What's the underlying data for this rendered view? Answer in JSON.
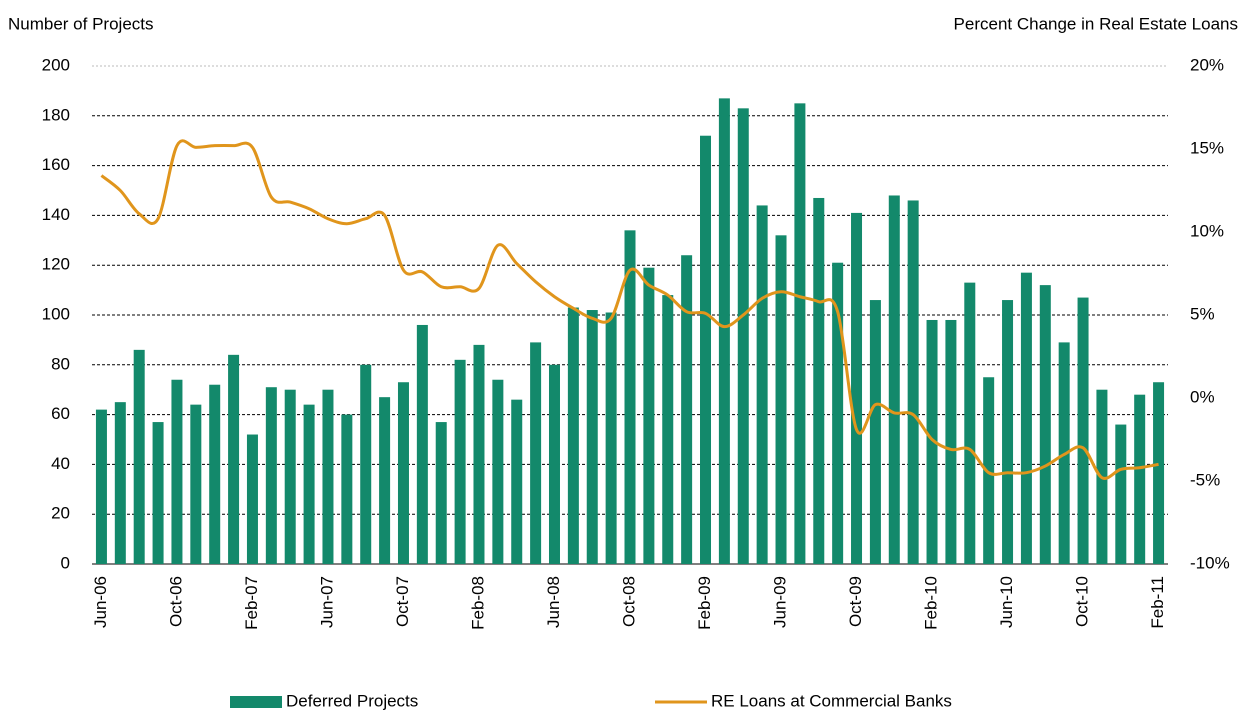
{
  "chart_data": {
    "type": "bar-line",
    "y_label": "Number of Projects",
    "y2_label": "Percent Change in Real Estate Loans",
    "categories": [
      "Jun-06",
      null,
      null,
      null,
      "Oct-06",
      null,
      null,
      null,
      "Feb-07",
      null,
      null,
      null,
      "Jun-07",
      null,
      null,
      null,
      "Oct-07",
      null,
      null,
      null,
      "Feb-08",
      null,
      null,
      null,
      "Jun-08",
      null,
      null,
      null,
      "Oct-08",
      null,
      null,
      null,
      "Feb-09",
      null,
      null,
      null,
      "Jun-09",
      null,
      null,
      null,
      "Oct-09",
      null,
      null,
      null,
      "Feb-10",
      null,
      null,
      null,
      "Jun-10",
      null,
      null,
      null,
      "Oct-10",
      null,
      null,
      null,
      "Feb-11"
    ],
    "series": [
      {
        "name": "Deferred Projects",
        "type": "bar",
        "color": "#13896b",
        "values": [
          62,
          65,
          86,
          57,
          74,
          64,
          72,
          84,
          52,
          71,
          70,
          64,
          70,
          60,
          80,
          67,
          73,
          96,
          57,
          82,
          88,
          74,
          66,
          89,
          80,
          103,
          102,
          101,
          134,
          119,
          108,
          124,
          172,
          187,
          183,
          144,
          132,
          185,
          147,
          121,
          141,
          106,
          148,
          146,
          98,
          98,
          113,
          75,
          106,
          117,
          112,
          89,
          107,
          70,
          56,
          68,
          73
        ]
      },
      {
        "name": "RE Loans at Commercial Banks",
        "type": "line",
        "axis": "y2",
        "color": "#e0951c",
        "values": [
          13.4,
          12.5,
          11.1,
          10.8,
          15.2,
          15.1,
          15.2,
          15.2,
          15.1,
          12.1,
          11.8,
          11.4,
          10.8,
          10.5,
          10.8,
          11.0,
          7.7,
          7.6,
          6.7,
          6.7,
          6.6,
          9.2,
          8.1,
          7.0,
          6.1,
          5.4,
          4.8,
          4.8,
          7.7,
          6.8,
          6.2,
          5.2,
          5.1,
          4.3,
          5.0,
          6.0,
          6.4,
          6.1,
          5.8,
          5.2,
          -1.9,
          -0.4,
          -0.9,
          -1.0,
          -2.5,
          -3.1,
          -3.1,
          -4.5,
          -4.5,
          -4.5,
          -4.1,
          -3.4,
          -3.0,
          -4.8,
          -4.3,
          -4.2,
          -4.0
        ]
      }
    ],
    "ylim": [
      0,
      200
    ],
    "yticks": [
      0,
      20,
      40,
      60,
      80,
      100,
      120,
      140,
      160,
      180,
      200
    ],
    "y2lim": [
      -10,
      20
    ],
    "y2ticks": [
      {
        "value": -10,
        "label": "-10%"
      },
      {
        "value": -5,
        "label": "-5%"
      },
      {
        "value": 0,
        "label": "0%"
      },
      {
        "value": 5,
        "label": "5%"
      },
      {
        "value": 10,
        "label": "10%"
      },
      {
        "value": 15,
        "label": "15%"
      },
      {
        "value": 20,
        "label": "20%"
      }
    ],
    "grid": true,
    "legend": "bottom"
  }
}
